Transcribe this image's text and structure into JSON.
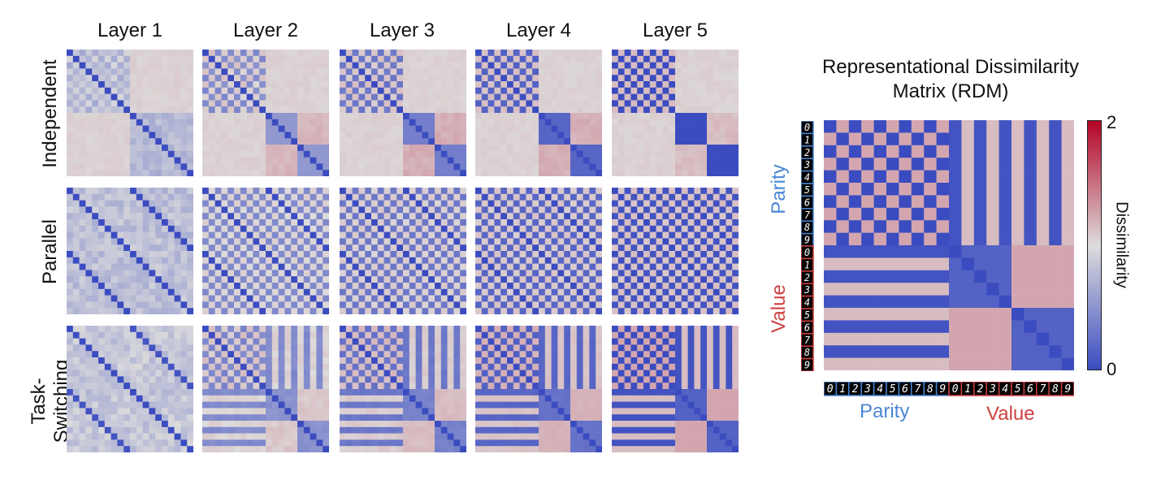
{
  "colors": {
    "low": "#3b4cc0",
    "mid": "#dddcdc",
    "high": "#b40426",
    "parity": "#4a86d4",
    "value": "#d04040"
  },
  "layer_titles": [
    "Layer 1",
    "Layer 2",
    "Layer 3",
    "Layer 4",
    "Layer 5"
  ],
  "row_labels": [
    "Independent",
    "Parallel",
    "Task-Switching"
  ],
  "rdm": {
    "title_line1": "Representational Dissimilarity",
    "title_line2": "Matrix (RDM)",
    "axis_left_top": "Parity",
    "axis_left_bottom": "Value",
    "axis_bottom_left": "Parity",
    "axis_bottom_right": "Value",
    "digits": [
      "0",
      "1",
      "2",
      "3",
      "4",
      "5",
      "6",
      "7",
      "8",
      "9",
      "0",
      "1",
      "2",
      "3",
      "4",
      "5",
      "6",
      "7",
      "8",
      "9"
    ]
  },
  "colorbar": {
    "label": "Dissimilarity",
    "max_label": "2",
    "min_label": "0"
  },
  "chart_data": {
    "type": "heatmap",
    "title": "Representational Dissimilarity Matrix (RDM)",
    "size": 20,
    "value_range": [
      0,
      2
    ],
    "colormap": "coolwarm",
    "panels_rows": [
      "Independent",
      "Parallel",
      "Task-Switching"
    ],
    "panels_cols": [
      "Layer 1",
      "Layer 2",
      "Layer 3",
      "Layer 4",
      "Layer 5"
    ],
    "target_rdm_rule": "parity block: 0 when parities equal else 1; value block: 0 when digits equal else 1; cross blocks: 1 when parity of parity-digit equals value grouping else ~1"
  }
}
